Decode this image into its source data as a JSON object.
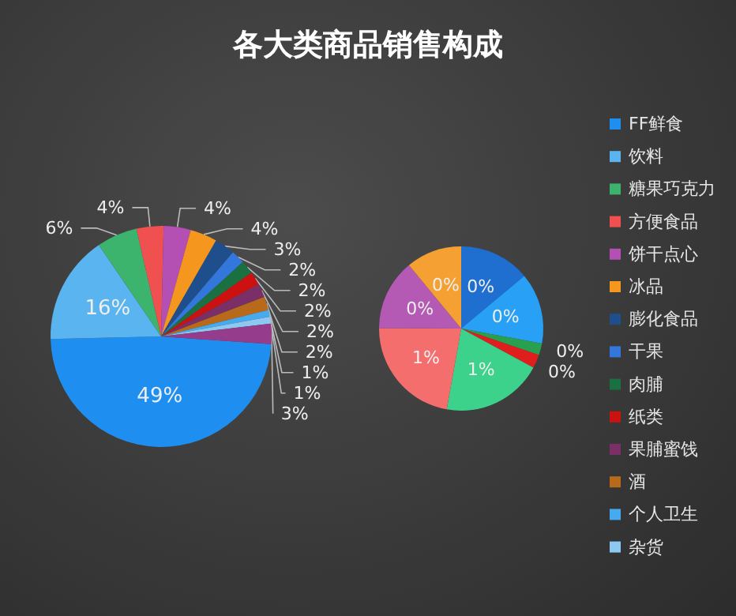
{
  "chart_data": [
    {
      "type": "pie",
      "title": "各大类商品销售构成",
      "legend": "right",
      "categories": [
        "FF鲜食",
        "饮料",
        "糖果巧克力",
        "方便食品",
        "饼干点心",
        "冰品",
        "膨化食品",
        "干果",
        "肉脯",
        "纸类",
        "果脯蜜饯",
        "酒",
        "个人卫生",
        "杂货",
        null
      ],
      "values": [
        49,
        16,
        6,
        4,
        4,
        4,
        3,
        2,
        2,
        2,
        2,
        2,
        1,
        1,
        3
      ],
      "value_labels": [
        "49%",
        "16%",
        "6%",
        "4%",
        "4%",
        "4%",
        "3%",
        "2%",
        "2%",
        "2%",
        "2%",
        "2%",
        "1%",
        "1%",
        "3%"
      ],
      "colors": [
        "#1e8ff0",
        "#5ab4f0",
        "#3cb46e",
        "#f05050",
        "#b450b4",
        "#f5961e",
        "#1f4e8c",
        "#3377dd",
        "#1a7040",
        "#cc1111",
        "#7a2f66",
        "#b86a1a",
        "#46aaf0",
        "#8cc8f0",
        "#963c8c"
      ]
    },
    {
      "type": "pie",
      "categories": [
        null,
        null,
        null,
        null,
        null,
        null,
        null,
        null
      ],
      "values": [
        0.42,
        0.42,
        0.07,
        0.08,
        0.6,
        0.67,
        0.42,
        0.33
      ],
      "value_labels": [
        "0%",
        "0%",
        "0%",
        "0%",
        "1%",
        "1%",
        "0%",
        "0%"
      ],
      "colors": [
        "#1e6fd0",
        "#28a0f5",
        "#28a050",
        "#e01e1e",
        "#3cd28c",
        "#f56e6e",
        "#b45ab4",
        "#f5a032"
      ]
    }
  ]
}
